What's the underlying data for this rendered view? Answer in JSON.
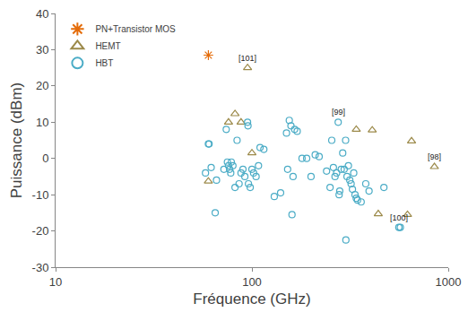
{
  "chart_data": {
    "type": "scatter",
    "x_label": "Fréquence (GHz)",
    "y_label": "Puissance (dBm)",
    "log": "x",
    "grid": false,
    "legend": "upper left",
    "xlim": [
      10,
      1000
    ],
    "xticks": [
      10,
      100,
      1000
    ],
    "ylim": [
      -30,
      40
    ],
    "yticks": [
      -30,
      -20,
      -10,
      0,
      10,
      20,
      30,
      40
    ],
    "series": [
      {
        "name": "PN+Transistor MOS",
        "color": "#e46c0a",
        "marker": "star",
        "x": [
          60
        ],
        "values": [
          28.5
        ]
      },
      {
        "name": "HEMT",
        "color": "#9c8a4a",
        "marker": "triangle",
        "x": [
          60,
          76,
          82,
          88,
          95,
          100,
          340,
          410,
          440,
          620,
          650,
          850
        ],
        "values": [
          -6.3,
          10,
          12.3,
          10,
          25,
          1.5,
          8,
          7.8,
          -15.3,
          -15.5,
          4.8,
          -2.3
        ]
      },
      {
        "name": "HBT",
        "color": "#4bacc6",
        "marker": "circle",
        "x": [
          58,
          60,
          60.5,
          62,
          65,
          66,
          72,
          74,
          75,
          76,
          77,
          78,
          78.5,
          80,
          82,
          84,
          86,
          88,
          90,
          92,
          95,
          95.5,
          96,
          98,
          100,
          102,
          105,
          108,
          110,
          115,
          130,
          140,
          150,
          152,
          155,
          158,
          160,
          162,
          165,
          170,
          180,
          190,
          200,
          210,
          220,
          240,
          250,
          255,
          260,
          265,
          270,
          275,
          278,
          280,
          285,
          290,
          295,
          300,
          301,
          305,
          310,
          315,
          320,
          325,
          330,
          335,
          340,
          345,
          360,
          380,
          395,
          470,
          560,
          570
        ],
        "values": [
          -4,
          4,
          4,
          -2.5,
          -15,
          -6,
          -3,
          8,
          -1,
          -2,
          -3,
          -4,
          -1,
          -2,
          -8,
          5,
          -7,
          -4,
          -3,
          -5,
          10,
          9,
          -7,
          -8,
          -3,
          -4,
          -5,
          -2,
          3,
          2.5,
          -10.5,
          -9.5,
          7,
          -3,
          10.5,
          9,
          -15.5,
          -5,
          8,
          7.5,
          0,
          0,
          -5,
          1,
          0.5,
          -3.5,
          -8,
          5,
          -2.5,
          -5,
          -4,
          10,
          -10,
          -9,
          -3,
          1.5,
          -3,
          5,
          -22.5,
          -5,
          -2,
          -6,
          -7,
          -8.5,
          -4,
          -10,
          -11,
          -11.5,
          -12,
          -7,
          -9,
          -8,
          -19,
          -19
        ]
      }
    ],
    "annotations": [
      {
        "text": "[101]",
        "x": 95,
        "y": 25
      },
      {
        "text": "[99]",
        "x": 275,
        "y": 10
      },
      {
        "text": "[98]",
        "x": 850,
        "y": -2.3
      },
      {
        "text": "[100]",
        "x": 560,
        "y": -19
      }
    ]
  }
}
